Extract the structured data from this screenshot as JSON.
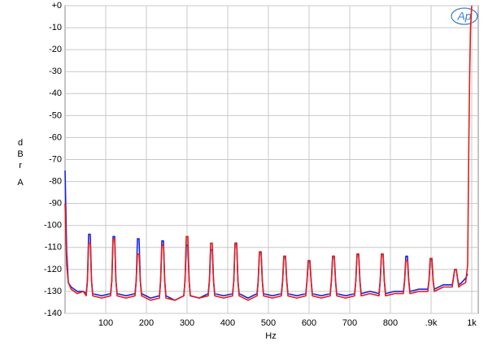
{
  "chart_data": {
    "type": "line",
    "xlabel": "Hz",
    "ylabel": "dBr",
    "ylabel_unit": "A",
    "logo": "Ap",
    "xlim": [
      0,
      1016
    ],
    "ylim": [
      -140,
      0
    ],
    "xticks": [
      100,
      200,
      300,
      400,
      500,
      600,
      700,
      800,
      {
        "value": 900,
        "label": ".9k"
      },
      {
        "value": 1000,
        "label": "1k"
      }
    ],
    "yticks": [
      {
        "value": 0,
        "label": "+0"
      },
      -10,
      -20,
      -30,
      -40,
      -50,
      -60,
      -70,
      -80,
      -90,
      -100,
      -110,
      -120,
      -130,
      -140
    ],
    "grid": true,
    "x": [
      0,
      4,
      8,
      15,
      30,
      45,
      52,
      55,
      58,
      62,
      65,
      68,
      90,
      112,
      115,
      118,
      122,
      125,
      128,
      150,
      172,
      175,
      178,
      182,
      185,
      188,
      210,
      232,
      235,
      238,
      242,
      245,
      248,
      270,
      292,
      295,
      298,
      302,
      305,
      308,
      330,
      352,
      355,
      358,
      362,
      365,
      368,
      390,
      412,
      415,
      418,
      422,
      425,
      428,
      450,
      472,
      475,
      478,
      482,
      485,
      488,
      510,
      532,
      535,
      538,
      542,
      545,
      548,
      570,
      592,
      595,
      598,
      602,
      605,
      608,
      630,
      652,
      655,
      658,
      662,
      665,
      668,
      690,
      712,
      715,
      718,
      722,
      725,
      728,
      750,
      772,
      775,
      778,
      782,
      785,
      788,
      810,
      832,
      835,
      838,
      842,
      845,
      848,
      870,
      892,
      895,
      898,
      902,
      905,
      908,
      930,
      952,
      955,
      958,
      962,
      965,
      968,
      975,
      985,
      990,
      993,
      995,
      997,
      999,
      1000
    ],
    "series": [
      {
        "color": "#1f1fe0",
        "values": [
          -75,
          -112,
          -126,
          -128,
          -130,
          -130,
          -131,
          -125,
          -104,
          -104,
          -125,
          -131,
          -132,
          -131,
          -125,
          -105,
          -105,
          -125,
          -131,
          -132,
          -131,
          -125,
          -106,
          -106,
          -125,
          -131,
          -133,
          -132,
          -125,
          -107,
          -107,
          -125,
          -132,
          -134,
          -132,
          -125,
          -109,
          -109,
          -125,
          -132,
          -133,
          -131,
          -125,
          -111,
          -111,
          -125,
          -131,
          -132,
          -131,
          -125,
          -108,
          -108,
          -125,
          -131,
          -133,
          -131,
          -125,
          -112,
          -112,
          -125,
          -131,
          -132,
          -131,
          -125,
          -114,
          -114,
          -125,
          -131,
          -132,
          -131,
          -125,
          -116,
          -116,
          -125,
          -131,
          -132,
          -131,
          -125,
          -114,
          -114,
          -125,
          -131,
          -132,
          -131,
          -125,
          -113,
          -113,
          -125,
          -131,
          -130,
          -131,
          -125,
          -113,
          -113,
          -125,
          -131,
          -130,
          -130,
          -125,
          -114,
          -114,
          -125,
          -130,
          -129,
          -129,
          -125,
          -115,
          -115,
          -125,
          -129,
          -127,
          -127,
          -124,
          -120,
          -120,
          -124,
          -127,
          -126,
          -124,
          -122,
          null,
          null,
          null,
          null,
          null
        ]
      },
      {
        "color": "#e01f1f",
        "values": [
          -90,
          -118,
          -126,
          -129,
          -131,
          -130,
          -132,
          -125,
          -108,
          -108,
          -125,
          -132,
          -133,
          -132,
          -125,
          -106,
          -106,
          -125,
          -132,
          -133,
          -132,
          -125,
          -113,
          -113,
          -125,
          -132,
          -134,
          -133,
          -125,
          -109,
          -109,
          -125,
          -133,
          -134,
          -132,
          -125,
          -105,
          -105,
          -125,
          -132,
          -133,
          -132,
          -125,
          -108,
          -108,
          -125,
          -132,
          -133,
          -132,
          -125,
          -108,
          -108,
          -125,
          -132,
          -134,
          -132,
          -125,
          -112,
          -112,
          -125,
          -132,
          -133,
          -132,
          -125,
          -114,
          -114,
          -125,
          -132,
          -133,
          -132,
          -125,
          -116,
          -116,
          -125,
          -132,
          -133,
          -132,
          -125,
          -114,
          -114,
          -125,
          -132,
          -133,
          -132,
          -125,
          -113,
          -113,
          -125,
          -132,
          -131,
          -132,
          -125,
          -113,
          -113,
          -125,
          -132,
          -131,
          -131,
          -125,
          -116,
          -116,
          -125,
          -131,
          -130,
          -130,
          -125,
          -115,
          -115,
          -125,
          -130,
          -128,
          -128,
          -124,
          -120,
          -120,
          -124,
          -128,
          -127,
          -126,
          -118,
          -60,
          -30,
          -10,
          -3,
          0
        ]
      }
    ]
  }
}
